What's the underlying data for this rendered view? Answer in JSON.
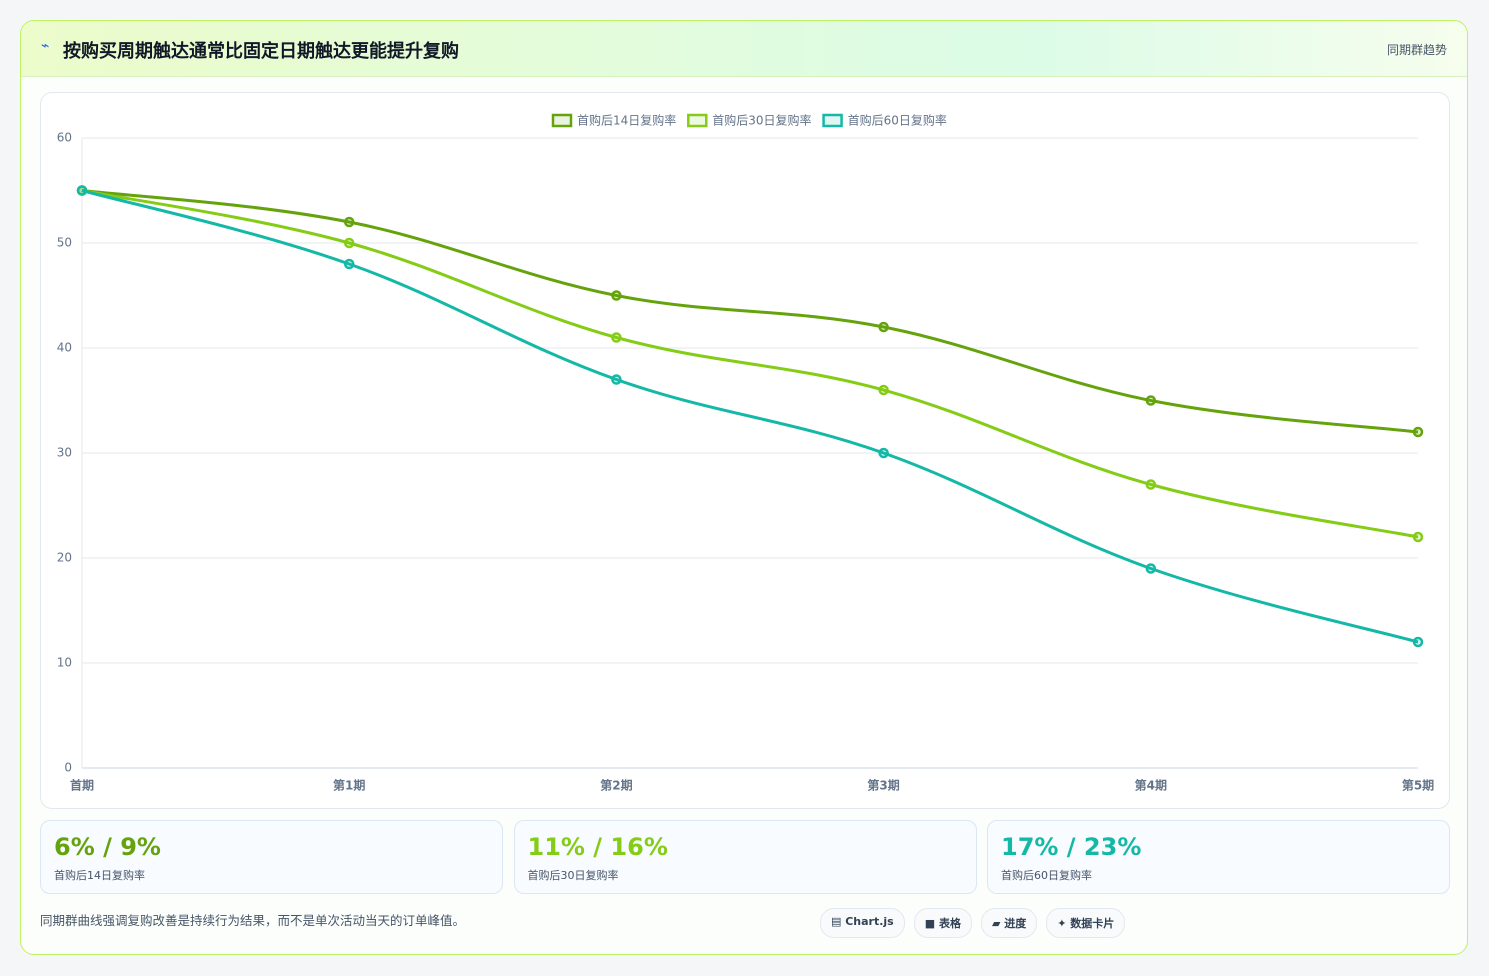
{
  "header": {
    "icon": "⌁",
    "title": "按购买周期触达通常比固定日期触达更能提升复购",
    "badge": "同期群趋势"
  },
  "chart_data": {
    "type": "line",
    "categories": [
      "首期",
      "第1期",
      "第2期",
      "第3期",
      "第4期",
      "第5期"
    ],
    "series": [
      {
        "name": "首购后14日复购率",
        "color": "#65a30d",
        "values": [
          55,
          52,
          45,
          42,
          35,
          32
        ]
      },
      {
        "name": "首购后30日复购率",
        "color": "#84cc16",
        "values": [
          55,
          50,
          41,
          36,
          27,
          22
        ]
      },
      {
        "name": "首购后60日复购率",
        "color": "#14b8a6",
        "values": [
          55,
          48,
          37,
          30,
          19,
          12
        ]
      }
    ],
    "ylim": [
      0,
      60
    ],
    "yticks": [
      0,
      10,
      20,
      30,
      40,
      50,
      60
    ],
    "grid": true,
    "legend": "top"
  },
  "stats": [
    {
      "value": "6% / 9%",
      "label": "首购后14日复购率",
      "color": "#65a30d"
    },
    {
      "value": "11% / 16%",
      "label": "首购后30日复购率",
      "color": "#84cc16"
    },
    {
      "value": "17% / 23%",
      "label": "首购后60日复购率",
      "color": "#14b8a6"
    }
  ],
  "footer": {
    "note": "同期群曲线强调复购改善是持续行为结果，而不是单次活动当天的订单峰值。",
    "buttons": [
      "▤ Chart.js",
      "■ 表格",
      "▰ 进度",
      "✦ 数据卡片"
    ]
  }
}
